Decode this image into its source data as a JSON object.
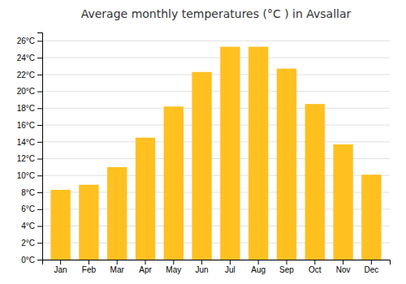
{
  "chart_data": {
    "type": "bar",
    "title": "Average monthly temperatures (°C ) in Avsallar",
    "categories": [
      "Jan",
      "Feb",
      "Mar",
      "Apr",
      "May",
      "Jun",
      "Jul",
      "Aug",
      "Sep",
      "Oct",
      "Nov",
      "Dec"
    ],
    "values": [
      8.3,
      8.9,
      11.0,
      14.5,
      18.2,
      22.3,
      25.3,
      25.3,
      22.7,
      18.5,
      13.7,
      10.1
    ],
    "color": "#FFC020",
    "ylim": [
      0,
      27
    ],
    "yticks": [
      {
        "value": 0,
        "label": "0°C"
      },
      {
        "value": 2,
        "label": "2°C"
      },
      {
        "value": 4,
        "label": "4°C"
      },
      {
        "value": 6,
        "label": "6°C"
      },
      {
        "value": 8,
        "label": "8°C"
      },
      {
        "value": 10,
        "label": "10°C"
      },
      {
        "value": 12,
        "label": "12°C"
      },
      {
        "value": 14,
        "label": "14°C"
      },
      {
        "value": 16,
        "label": "16°C"
      },
      {
        "value": 18,
        "label": "18°C"
      },
      {
        "value": 20,
        "label": "20°C"
      },
      {
        "value": 22,
        "label": "22°C"
      },
      {
        "value": 24,
        "label": "24°C"
      },
      {
        "value": 26,
        "label": "26°C"
      }
    ],
    "grid": true
  }
}
